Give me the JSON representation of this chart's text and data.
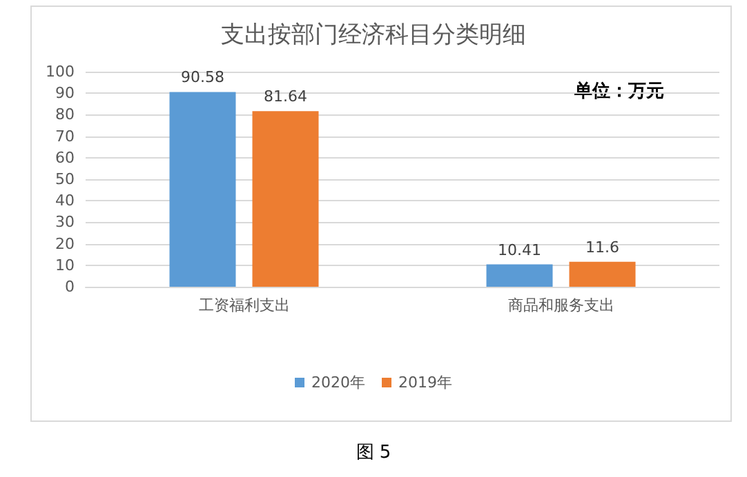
{
  "chart_data": {
    "type": "bar",
    "title": "支出按部门经济科目分类明细",
    "categories": [
      "工资福利支出",
      "商品和服务支出"
    ],
    "series": [
      {
        "name": "2020年",
        "color": "#5b9bd5",
        "values": [
          90.58,
          10.41
        ]
      },
      {
        "name": "2019年",
        "color": "#ed7d31",
        "values": [
          81.64,
          11.6
        ]
      }
    ],
    "ylim": [
      0,
      100
    ],
    "yticks": [
      0,
      10,
      20,
      30,
      40,
      50,
      60,
      70,
      80,
      90,
      100
    ],
    "grid": "y",
    "legend": "bottom",
    "data_labels": true,
    "annotations": [
      "单位：万元",
      "图 5"
    ]
  }
}
